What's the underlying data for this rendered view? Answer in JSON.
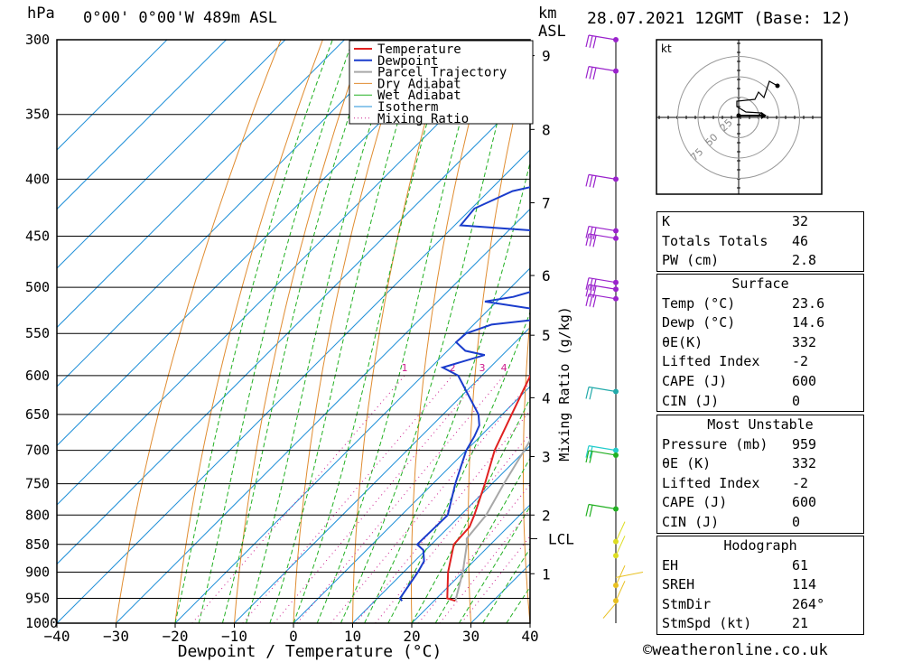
{
  "header": {
    "hpa_label": "hPa",
    "location": "0°00' 0°00'W  489m  ASL",
    "km_label": "km",
    "asl_label": "ASL",
    "datetime": "28.07.2021  12GMT  (Base: 12)"
  },
  "chart_data": {
    "type": "line",
    "title": "Skew-T log-P sounding",
    "xlabel": "Dewpoint / Temperature (°C)",
    "ylabel": "hPa",
    "xlim": [
      -40,
      40
    ],
    "ylim": [
      1000,
      300
    ],
    "x_ticks": [
      "-40",
      "-30",
      "-20",
      "-10",
      "0",
      "10",
      "20",
      "30",
      "40"
    ],
    "pressure_levels": [
      "300",
      "350",
      "400",
      "450",
      "500",
      "550",
      "600",
      "650",
      "700",
      "750",
      "800",
      "850",
      "900",
      "950",
      "1000"
    ],
    "height_ticks_km": [
      {
        "km": "9",
        "p": 310
      },
      {
        "km": "8",
        "p": 361
      },
      {
        "km": "7",
        "p": 420
      },
      {
        "km": "6",
        "p": 488
      },
      {
        "km": "5",
        "p": 552
      },
      {
        "km": "4",
        "p": 628
      },
      {
        "km": "3",
        "p": 709
      },
      {
        "km": "2",
        "p": 800
      },
      {
        "km": "1",
        "p": 903
      }
    ],
    "lcl": {
      "label": "LCL",
      "p": 840
    },
    "mixing_ratio_label": "Mixing Ratio (g/kg)",
    "mixing_ratios": [
      "1",
      "2",
      "3",
      "4",
      "6",
      "8",
      "10",
      "16",
      "20",
      "25"
    ],
    "legend": [
      "Temperature",
      "Dewpoint",
      "Parcel Trajectory",
      "Dry Adiabat",
      "Wet Adiabat",
      "Isotherm",
      "Mixing Ratio"
    ],
    "colors": {
      "temperature": "#e02020",
      "dewpoint": "#1a3ccc",
      "parcel": "#a8a8a8",
      "dry_adiabat": "#e08c30",
      "wet_adiabat": "#22b022",
      "isotherm": "#2090d8",
      "mixing_ratio": "#cc1a8c"
    },
    "series": [
      {
        "name": "Temperature",
        "points": [
          [
            955,
            23.6
          ],
          [
            950,
            21.8
          ],
          [
            900,
            17.5
          ],
          [
            850,
            13.8
          ],
          [
            820,
            13.5
          ],
          [
            800,
            12.3
          ],
          [
            750,
            8.8
          ],
          [
            700,
            4.8
          ],
          [
            650,
            1.6
          ],
          [
            600,
            -1.8
          ],
          [
            570,
            -3.8
          ],
          [
            550,
            -4.2
          ],
          [
            520,
            -6.0
          ],
          [
            500,
            -6.2
          ],
          [
            470,
            -8.8
          ],
          [
            450,
            -10.8
          ],
          [
            440,
            -10.2
          ],
          [
            400,
            -14.8
          ],
          [
            350,
            -21.4
          ],
          [
            300,
            -29.0
          ]
        ]
      },
      {
        "name": "Dewpoint",
        "points": [
          [
            955,
            14.6
          ],
          [
            950,
            13.8
          ],
          [
            900,
            12.4
          ],
          [
            880,
            11.6
          ],
          [
            860,
            9.6
          ],
          [
            850,
            7.6
          ],
          [
            800,
            7.8
          ],
          [
            750,
            3.8
          ],
          [
            700,
            0.0
          ],
          [
            680,
            -1.0
          ],
          [
            665,
            -2.0
          ],
          [
            650,
            -4.0
          ],
          [
            600,
            -14.0
          ],
          [
            590,
            -18.0
          ],
          [
            575,
            -13.0
          ],
          [
            570,
            -17.0
          ],
          [
            560,
            -20.0
          ],
          [
            550,
            -19.8
          ],
          [
            540,
            -17.0
          ],
          [
            535,
            -11.0
          ],
          [
            525,
            -10.0
          ],
          [
            515,
            -22.0
          ],
          [
            510,
            -18.0
          ],
          [
            500,
            -14.0
          ],
          [
            495,
            -7.5
          ],
          [
            470,
            -9.0
          ],
          [
            450,
            -11.5
          ],
          [
            440,
            -39.0
          ],
          [
            425,
            -39.5
          ],
          [
            410,
            -36.0
          ],
          [
            400,
            -29.0
          ],
          [
            385,
            -21.0
          ],
          [
            360,
            -27.0
          ],
          [
            350,
            -32.0
          ],
          [
            320,
            -36.0
          ],
          [
            310,
            -30.0
          ],
          [
            300,
            -38.0
          ]
        ]
      },
      {
        "name": "Parcel Trajectory",
        "points": [
          [
            955,
            23.6
          ],
          [
            900,
            20.0
          ],
          [
            850,
            16.0
          ],
          [
            840,
            15.0
          ],
          [
            800,
            14.3
          ],
          [
            750,
            12.0
          ],
          [
            700,
            9.8
          ],
          [
            650,
            7.3
          ],
          [
            600,
            4.3
          ],
          [
            550,
            0.8
          ],
          [
            500,
            -3.4
          ],
          [
            450,
            -8.6
          ],
          [
            400,
            -14.7
          ],
          [
            350,
            -22.0
          ],
          [
            300,
            -31.0
          ]
        ]
      }
    ]
  },
  "hodograph": {
    "unit_label": "kt",
    "ring_labels": [
      "25",
      "50",
      "75"
    ]
  },
  "indices": {
    "rows": [
      {
        "label": "K",
        "value": "32"
      },
      {
        "label": "Totals Totals",
        "value": "46"
      },
      {
        "label": "PW (cm)",
        "value": "2.8"
      }
    ]
  },
  "surface": {
    "title": "Surface",
    "rows": [
      {
        "label": "Temp (°C)",
        "value": "23.6"
      },
      {
        "label": "Dewp (°C)",
        "value": "14.6"
      },
      {
        "label": "θE(K)",
        "value": "332"
      },
      {
        "label": "Lifted Index",
        "value": "-2"
      },
      {
        "label": "CAPE (J)",
        "value": "600"
      },
      {
        "label": "CIN (J)",
        "value": "0"
      }
    ]
  },
  "most_unstable": {
    "title": "Most Unstable",
    "rows": [
      {
        "label": "Pressure (mb)",
        "value": "959"
      },
      {
        "label": "θE (K)",
        "value": "332"
      },
      {
        "label": "Lifted Index",
        "value": "-2"
      },
      {
        "label": "CAPE (J)",
        "value": "600"
      },
      {
        "label": "CIN (J)",
        "value": "0"
      }
    ]
  },
  "hodograph_params": {
    "title": "Hodograph",
    "rows": [
      {
        "label": "EH",
        "value": "61"
      },
      {
        "label": "SREH",
        "value": "114"
      },
      {
        "label": "StmDir",
        "value": "264°"
      },
      {
        "label": "StmSpd (kt)",
        "value": "21"
      }
    ]
  },
  "footer": {
    "copyright": "©weatheronline.co.uk"
  }
}
